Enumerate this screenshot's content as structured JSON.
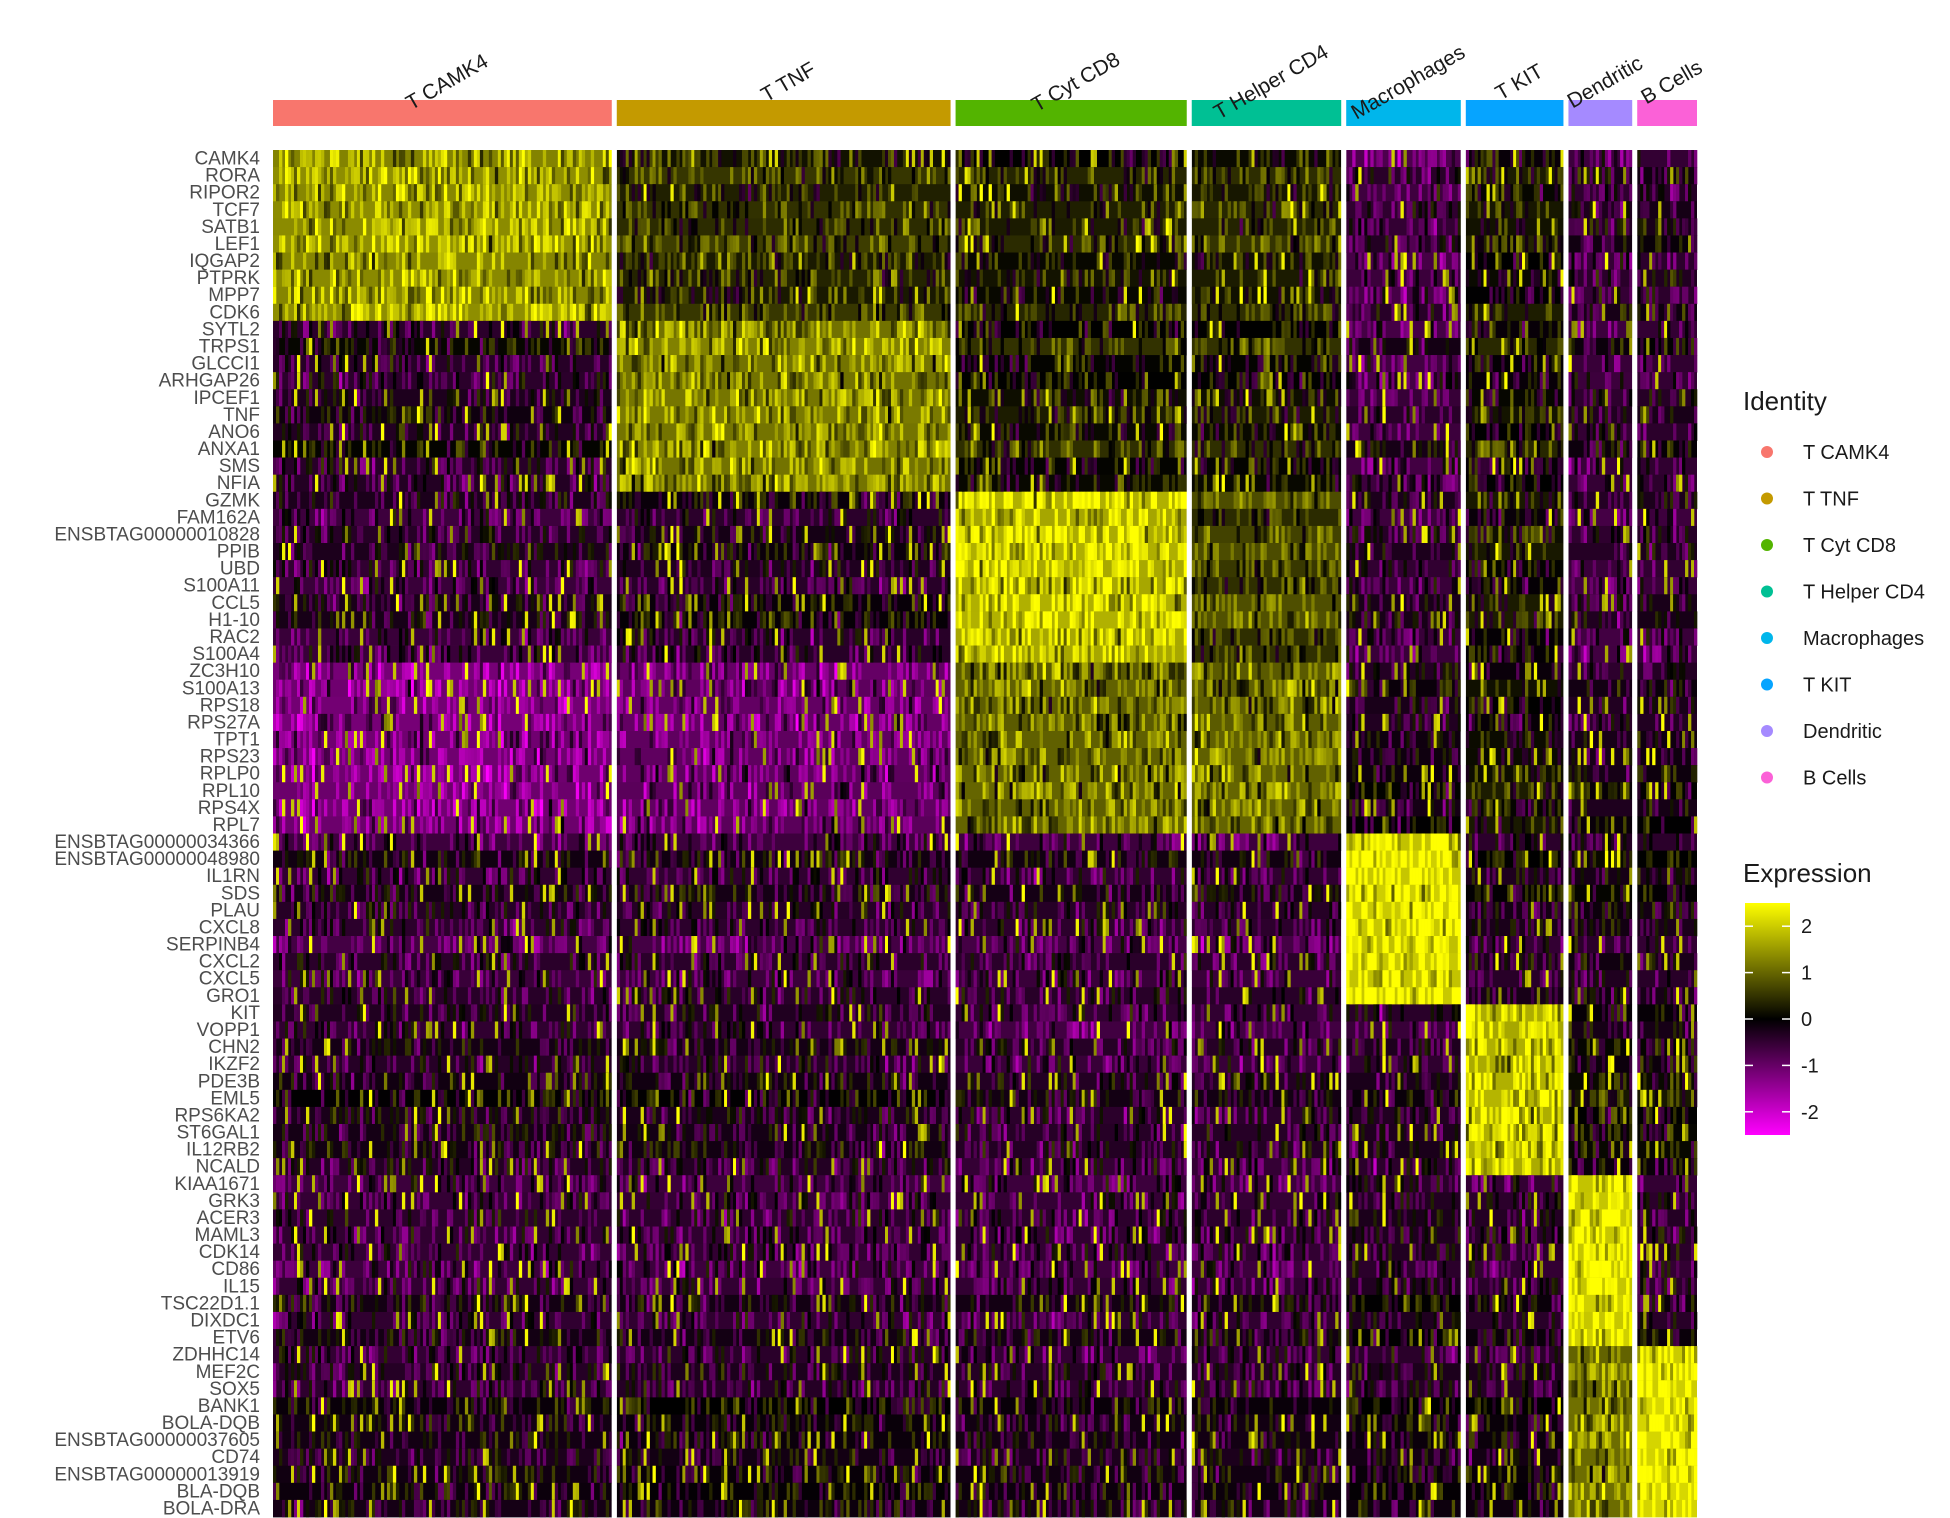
{
  "chart_data": {
    "type": "heatmap",
    "title": "",
    "xlabel": "",
    "ylabel": "",
    "clusters": [
      {
        "name": "T CAMK4",
        "color": "#F8766D",
        "cells": 340
      },
      {
        "name": "T TNF",
        "color": "#C49A00",
        "cells": 335
      },
      {
        "name": "T Cyt CD8",
        "color": "#53B400",
        "cells": 232
      },
      {
        "name": "T Helper CD4",
        "color": "#00C094",
        "cells": 150
      },
      {
        "name": "Macrophages",
        "color": "#00B6EB",
        "cells": 115
      },
      {
        "name": "T KIT",
        "color": "#06A4FF",
        "cells": 98
      },
      {
        "name": "Dendritic",
        "color": "#A58AFF",
        "cells": 64
      },
      {
        "name": "B Cells",
        "color": "#FB61D7",
        "cells": 60
      }
    ],
    "genes": [
      "CAMK4",
      "RORA",
      "RIPOR2",
      "TCF7",
      "SATB1",
      "LEF1",
      "IQGAP2",
      "PTPRK",
      "MPP7",
      "CDK6",
      "SYTL2",
      "TRPS1",
      "GLCCI1",
      "ARHGAP26",
      "IPCEF1",
      "TNF",
      "ANO6",
      "ANXA1",
      "SMS",
      "NFIA",
      "GZMK",
      "FAM162A",
      "ENSBTAG00000010828",
      "PPIB",
      "UBD",
      "S100A11",
      "CCL5",
      "H1-10",
      "RAC2",
      "S100A4",
      "ZC3H10",
      "S100A13",
      "RPS18",
      "RPS27A",
      "TPT1",
      "RPS23",
      "RPLP0",
      "RPL10",
      "RPS4X",
      "RPL7",
      "ENSBTAG00000034366",
      "ENSBTAG00000048980",
      "IL1RN",
      "SDS",
      "PLAU",
      "CXCL8",
      "SERPINB4",
      "CXCL2",
      "CXCL5",
      "GRO1",
      "KIT",
      "VOPP1",
      "CHN2",
      "IKZF2",
      "PDE3B",
      "EML5",
      "RPS6KA2",
      "ST6GAL1",
      "IL12RB2",
      "NCALD",
      "KIAA1671",
      "GRK3",
      "ACER3",
      "MAML3",
      "CDK14",
      "CD86",
      "IL15",
      "TSC22D1.1",
      "DIXDC1",
      "ETV6",
      "ZDHHC14",
      "MEF2C",
      "SOX5",
      "BANK1",
      "BOLA-DQB",
      "ENSBTAG00000037605",
      "CD74",
      "ENSBTAG00000013919",
      "BLA-DQB",
      "BOLA-DRA"
    ],
    "gene_group_mean_expression": [
      [
        1.6,
        0.5,
        0.3,
        0.4,
        -0.6,
        0.2,
        -0.4,
        -0.3
      ],
      [
        -0.2,
        1.4,
        0.3,
        0.3,
        -0.5,
        0.2,
        -0.4,
        -0.3
      ],
      [
        -0.4,
        -0.2,
        2.0,
        0.8,
        -0.4,
        0.2,
        -0.5,
        -0.4
      ],
      [
        -1.3,
        -1.1,
        1.1,
        1.1,
        -0.2,
        0.1,
        -0.3,
        -0.2
      ],
      [
        -0.5,
        -0.5,
        -0.5,
        -0.5,
        2.3,
        -0.3,
        -0.2,
        -0.3
      ],
      [
        -0.3,
        -0.3,
        -0.5,
        -0.5,
        -0.4,
        2.0,
        0.0,
        0.0
      ],
      [
        -0.5,
        -0.5,
        -0.5,
        -0.5,
        -0.3,
        -0.4,
        2.3,
        -0.4
      ],
      [
        -0.4,
        -0.3,
        -0.4,
        -0.4,
        -0.3,
        -0.3,
        1.2,
        2.4
      ]
    ],
    "genes_per_group": 10,
    "identity_legend": {
      "title": "Identity",
      "items": [
        "T CAMK4",
        "T TNF",
        "T Cyt CD8",
        "T Helper CD4",
        "Macrophages",
        "T KIT",
        "Dendritic",
        "B Cells"
      ]
    },
    "expression_legend": {
      "title": "Expression",
      "ticks": [
        "2",
        "1",
        "0",
        "-1",
        "-2"
      ],
      "tick_values": [
        2,
        1,
        0,
        -1,
        -2
      ],
      "range": [
        -2.5,
        2.5
      ],
      "low_color": "#FF00FF",
      "mid_color": "#000000",
      "high_color": "#FFFF00"
    },
    "legend_placement": "right"
  }
}
